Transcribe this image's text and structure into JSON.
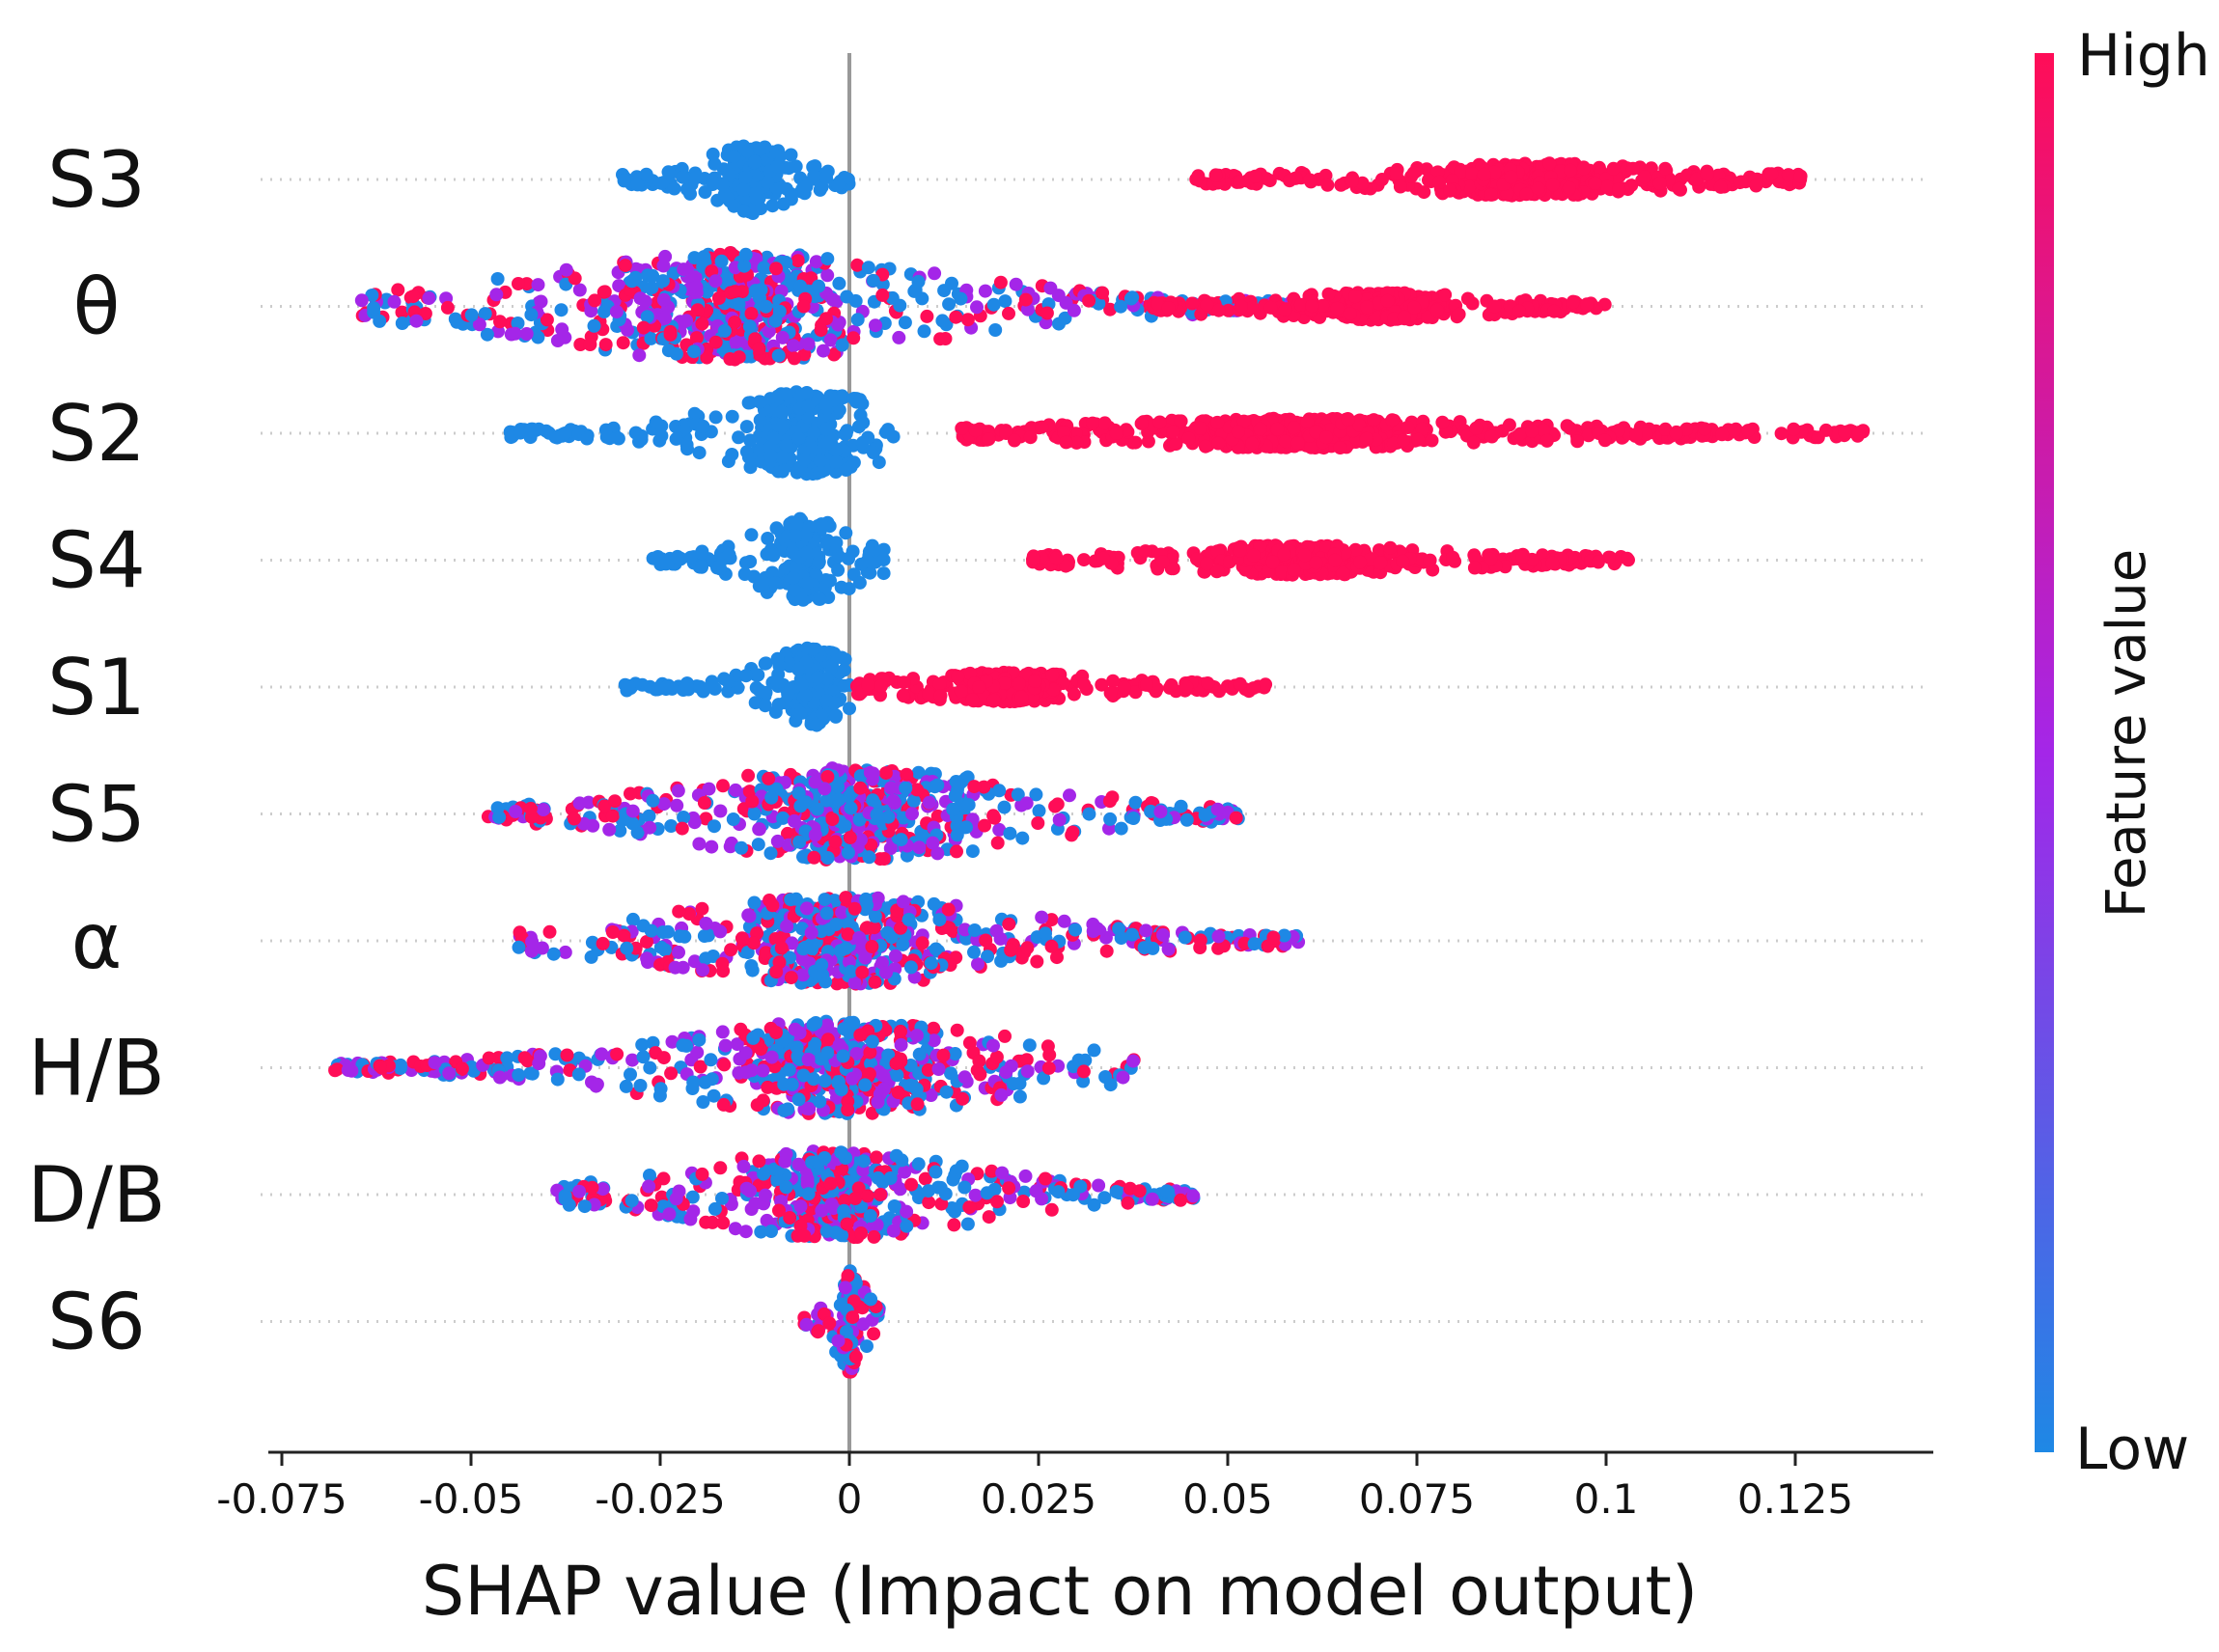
{
  "chart_data": {
    "type": "scatter",
    "subtype": "shap-beeswarm",
    "title": "",
    "xlabel": "SHAP value (Impact on model output)",
    "ylabel": "",
    "xlim": [
      -0.078,
      0.143
    ],
    "x_ticks": [
      -0.075,
      -0.05,
      -0.025,
      0,
      0.025,
      0.05,
      0.075,
      0.1,
      0.125
    ],
    "x_tick_labels": [
      "-0.075",
      "-0.05",
      "-0.025",
      "0",
      "0.025",
      "0.05",
      "0.075",
      "0.1",
      "0.125"
    ],
    "grid": false,
    "zero_line": true,
    "colorbar": {
      "title": "Feature value",
      "high_label": "High",
      "low_label": "Low",
      "high_color": "#ff0d57",
      "low_color": "#1e88e5",
      "mid_color": "#a426e8"
    },
    "features": [
      {
        "name": "S3",
        "segments": [
          {
            "from": -0.03,
            "to": 0.0,
            "color": "low",
            "center": -0.013,
            "spread": 0.6
          },
          {
            "from": 0.045,
            "to": 0.126,
            "color": "high",
            "center": 0.09,
            "spread": 0.25
          }
        ]
      },
      {
        "name": "θ",
        "segments": [
          {
            "from": -0.065,
            "to": 0.06,
            "color": "mixed",
            "center": -0.015,
            "spread": 1.0
          },
          {
            "from": 0.04,
            "to": 0.1,
            "color": "high",
            "center": 0.07,
            "spread": 0.2
          }
        ]
      },
      {
        "name": "S2",
        "segments": [
          {
            "from": -0.046,
            "to": 0.006,
            "color": "low",
            "center": -0.006,
            "spread": 0.75
          },
          {
            "from": 0.013,
            "to": 0.134,
            "color": "high",
            "center": 0.06,
            "spread": 0.22
          }
        ]
      },
      {
        "name": "S4",
        "segments": [
          {
            "from": -0.026,
            "to": 0.005,
            "color": "low",
            "center": -0.006,
            "spread": 0.75
          },
          {
            "from": 0.024,
            "to": 0.103,
            "color": "high",
            "center": 0.06,
            "spread": 0.22
          }
        ]
      },
      {
        "name": "S1",
        "segments": [
          {
            "from": -0.03,
            "to": 0.0,
            "color": "low",
            "center": -0.005,
            "spread": 0.7
          },
          {
            "from": 0.0,
            "to": 0.055,
            "color": "high",
            "center": 0.02,
            "spread": 0.22
          }
        ]
      },
      {
        "name": "S5",
        "segments": [
          {
            "from": -0.048,
            "to": 0.052,
            "color": "mixed",
            "center": 0.001,
            "spread": 0.85
          }
        ]
      },
      {
        "name": "α",
        "segments": [
          {
            "from": -0.044,
            "to": 0.06,
            "color": "mixed",
            "center": -0.001,
            "spread": 0.8
          }
        ]
      },
      {
        "name": "H/B",
        "segments": [
          {
            "from": -0.068,
            "to": 0.039,
            "color": "mixed",
            "center": -0.001,
            "spread": 0.85
          }
        ]
      },
      {
        "name": "D/B",
        "segments": [
          {
            "from": -0.039,
            "to": 0.046,
            "color": "mixed",
            "center": -0.002,
            "spread": 0.8
          }
        ]
      },
      {
        "name": "S6",
        "segments": [
          {
            "from": -0.006,
            "to": 0.004,
            "color": "mixed",
            "center": 0.0,
            "spread": 0.95
          }
        ]
      }
    ]
  }
}
